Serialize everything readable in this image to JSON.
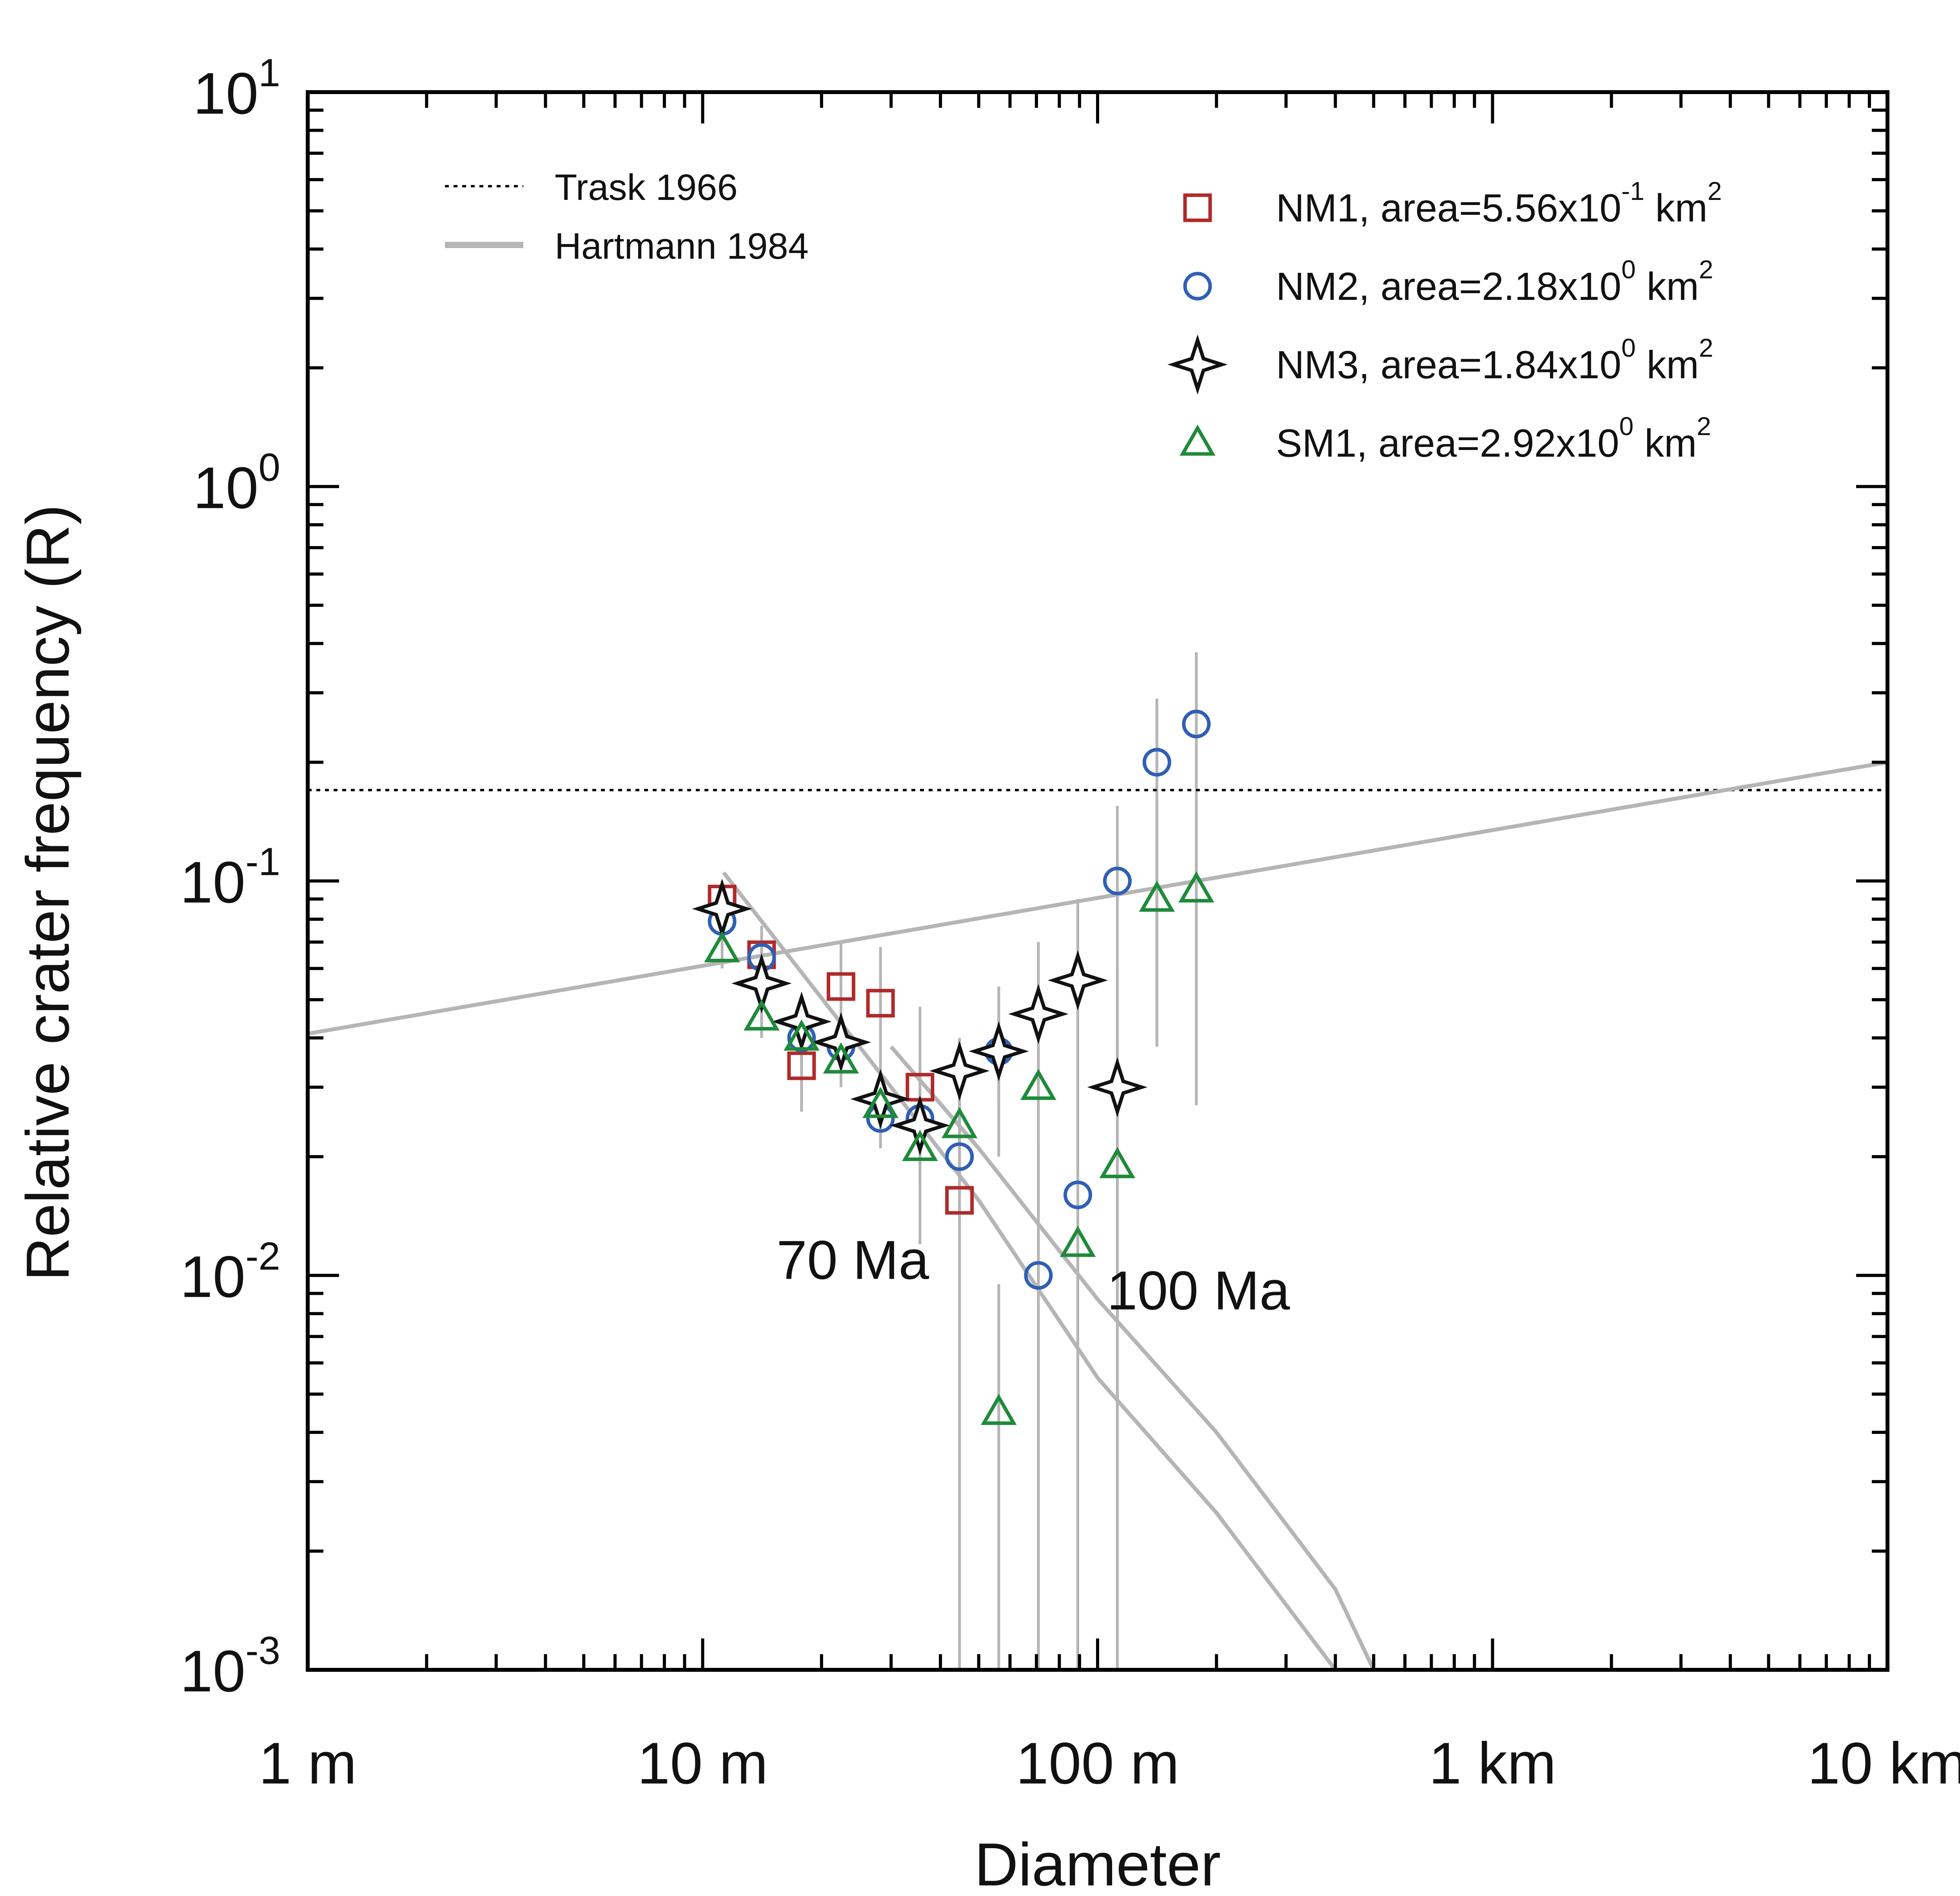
{
  "chart_data": {
    "type": "scatter",
    "xlabel": "Diameter",
    "ylabel": "Relative crater frequency (R)",
    "x_scale": "log",
    "y_scale": "log",
    "xlim": [
      1,
      10000
    ],
    "ylim": [
      0.001,
      10
    ],
    "x_ticks": [
      {
        "value": 1,
        "label": "1 m"
      },
      {
        "value": 10,
        "label": "10 m"
      },
      {
        "value": 100,
        "label": "100 m"
      },
      {
        "value": 1000,
        "label": "1 km"
      },
      {
        "value": 10000,
        "label": "10 km"
      }
    ],
    "y_ticks": [
      {
        "value": 10,
        "base": "10",
        "exp": "1"
      },
      {
        "value": 1,
        "base": "10",
        "exp": "0"
      },
      {
        "value": 0.1,
        "base": "10",
        "exp": "-1"
      },
      {
        "value": 0.01,
        "base": "10",
        "exp": "-2"
      },
      {
        "value": 0.001,
        "base": "10",
        "exp": "-3"
      }
    ],
    "grid": false,
    "reference_lines": [
      {
        "name": "Trask 1966",
        "style": "dotted",
        "color": "#000000",
        "points": [
          [
            1,
            0.17
          ],
          [
            10000,
            0.17
          ]
        ]
      },
      {
        "name": "Hartmann 1984",
        "style": "solid",
        "color": "#b5b5b5",
        "points": [
          [
            1,
            0.041
          ],
          [
            10000,
            0.2
          ]
        ]
      }
    ],
    "isochrons": [
      {
        "label": "70 Ma",
        "color": "#b5b5b5",
        "points": [
          [
            11.3,
            0.105
          ],
          [
            30,
            0.03
          ],
          [
            50,
            0.0155
          ],
          [
            100,
            0.0055
          ],
          [
            200,
            0.0025
          ],
          [
            400,
            0.001
          ]
        ]
      },
      {
        "label": "100 Ma",
        "color": "#b5b5b5",
        "points": [
          [
            30,
            0.038
          ],
          [
            50,
            0.021
          ],
          [
            100,
            0.0087
          ],
          [
            200,
            0.004
          ],
          [
            400,
            0.0016
          ],
          [
            500,
            0.001
          ]
        ]
      }
    ],
    "annotations": [
      {
        "text": "70 Ma",
        "x": 24,
        "y": 0.0098
      },
      {
        "text": "100 Ma",
        "x": 180,
        "y": 0.0082
      }
    ],
    "error_bar_color": "#b5b5b5",
    "series": [
      {
        "name": "NM1",
        "legend_text": "NM1, area=5.56x10",
        "legend_exp": "-1",
        "legend_unit": "km",
        "legend_unit_exp": "2",
        "marker": "square",
        "color": "#b02a2a",
        "points": [
          {
            "x": 11.2,
            "y": 0.09,
            "err": [
              0.075,
              0.1
            ]
          },
          {
            "x": 14.1,
            "y": 0.065,
            "err": [
              0.053,
              0.077
            ]
          },
          {
            "x": 17.8,
            "y": 0.034,
            "err": [
              0.026,
              0.043
            ]
          },
          {
            "x": 22.4,
            "y": 0.054,
            "err": [
              0.038,
              0.07
            ]
          },
          {
            "x": 28.2,
            "y": 0.049,
            "err": [
              0.03,
              0.068
            ]
          },
          {
            "x": 35.5,
            "y": 0.03,
            "err": [
              0.012,
              0.048
            ]
          },
          {
            "x": 44.7,
            "y": 0.0155,
            "err": [
              0.001,
              0.034
            ]
          }
        ]
      },
      {
        "name": "NM2",
        "legend_text": "NM2, area=2.18x10",
        "legend_exp": "0",
        "legend_unit": "km",
        "legend_unit_exp": "2",
        "marker": "circle",
        "color": "#2f5fb5",
        "points": [
          {
            "x": 11.2,
            "y": 0.079,
            "err": [
              0.07,
              0.089
            ]
          },
          {
            "x": 14.1,
            "y": 0.064,
            "err": [
              0.057,
              0.071
            ]
          },
          {
            "x": 17.8,
            "y": 0.04,
            "err": [
              0.035,
              0.046
            ]
          },
          {
            "x": 22.4,
            "y": 0.038,
            "err": [
              0.032,
              0.044
            ]
          },
          {
            "x": 28.2,
            "y": 0.025,
            "err": [
              0.021,
              0.029
            ]
          },
          {
            "x": 35.5,
            "y": 0.025,
            "err": [
              0.021,
              0.03
            ]
          },
          {
            "x": 44.7,
            "y": 0.02,
            "err": [
              0.014,
              0.026
            ]
          },
          {
            "x": 56.2,
            "y": 0.037,
            "err": [
              0.02,
              0.054
            ]
          },
          {
            "x": 70.8,
            "y": 0.01,
            "err": [
              0.001,
              0.022
            ]
          },
          {
            "x": 89.1,
            "y": 0.016,
            "err": [
              0.001,
              0.035
            ]
          },
          {
            "x": 112.2,
            "y": 0.1,
            "err": [
              0.03,
              0.155
            ]
          },
          {
            "x": 141.3,
            "y": 0.2,
            "err": [
              0.038,
              0.29
            ]
          },
          {
            "x": 177.8,
            "y": 0.25,
            "err": [
              0.027,
              0.38
            ]
          }
        ]
      },
      {
        "name": "NM3",
        "legend_text": "NM3, area=1.84x10",
        "legend_exp": "0",
        "legend_unit": "km",
        "legend_unit_exp": "2",
        "marker": "star4",
        "color": "#111111",
        "points": [
          {
            "x": 11.2,
            "y": 0.085,
            "err": [
              0.078,
              0.092
            ]
          },
          {
            "x": 14.1,
            "y": 0.055,
            "err": [
              0.05,
              0.061
            ]
          },
          {
            "x": 17.8,
            "y": 0.044,
            "err": [
              0.039,
              0.049
            ]
          },
          {
            "x": 22.4,
            "y": 0.039,
            "err": [
              0.034,
              0.044
            ]
          },
          {
            "x": 28.2,
            "y": 0.028,
            "err": [
              0.024,
              0.032
            ]
          },
          {
            "x": 35.5,
            "y": 0.024,
            "err": [
              0.02,
              0.028
            ]
          },
          {
            "x": 44.7,
            "y": 0.033,
            "err": [
              0.026,
              0.04
            ]
          },
          {
            "x": 56.2,
            "y": 0.037,
            "err": [
              0.028,
              0.046
            ]
          },
          {
            "x": 70.8,
            "y": 0.046,
            "err": [
              0.03,
              0.07
            ]
          },
          {
            "x": 89.1,
            "y": 0.056,
            "err": [
              0.03,
              0.09
            ]
          },
          {
            "x": 112.2,
            "y": 0.03,
            "err": [
              0.001,
              0.06
            ]
          }
        ]
      },
      {
        "name": "SM1",
        "legend_text": "SM1, area=2.92x10",
        "legend_exp": "0",
        "legend_unit": "km",
        "legend_unit_exp": "2",
        "marker": "triangle",
        "color": "#1f8a3a",
        "points": [
          {
            "x": 11.2,
            "y": 0.067,
            "err": [
              0.06,
              0.074
            ]
          },
          {
            "x": 14.1,
            "y": 0.045,
            "err": [
              0.04,
              0.05
            ]
          },
          {
            "x": 17.8,
            "y": 0.04,
            "err": [
              0.035,
              0.045
            ]
          },
          {
            "x": 22.4,
            "y": 0.035,
            "err": [
              0.03,
              0.04
            ]
          },
          {
            "x": 28.2,
            "y": 0.027,
            "err": [
              0.023,
              0.031
            ]
          },
          {
            "x": 35.5,
            "y": 0.021,
            "err": [
              0.017,
              0.025
            ]
          },
          {
            "x": 44.7,
            "y": 0.024,
            "err": [
              0.018,
              0.03
            ]
          },
          {
            "x": 56.2,
            "y": 0.0045,
            "err": [
              0.001,
              0.0095
            ]
          },
          {
            "x": 70.8,
            "y": 0.03,
            "err": [
              0.001,
              0.05
            ]
          },
          {
            "x": 89.1,
            "y": 0.012,
            "err": [
              0.001,
              0.03
            ]
          },
          {
            "x": 112.2,
            "y": 0.019,
            "err": [
              0.001,
              0.04
            ]
          },
          {
            "x": 141.3,
            "y": 0.09,
            "err": [
              0.05,
              0.13
            ]
          },
          {
            "x": 177.8,
            "y": 0.095,
            "err": [
              0.06,
              0.135
            ]
          }
        ]
      }
    ],
    "legend": {
      "left_placement": "top-left",
      "right_placement": "top-right"
    }
  }
}
